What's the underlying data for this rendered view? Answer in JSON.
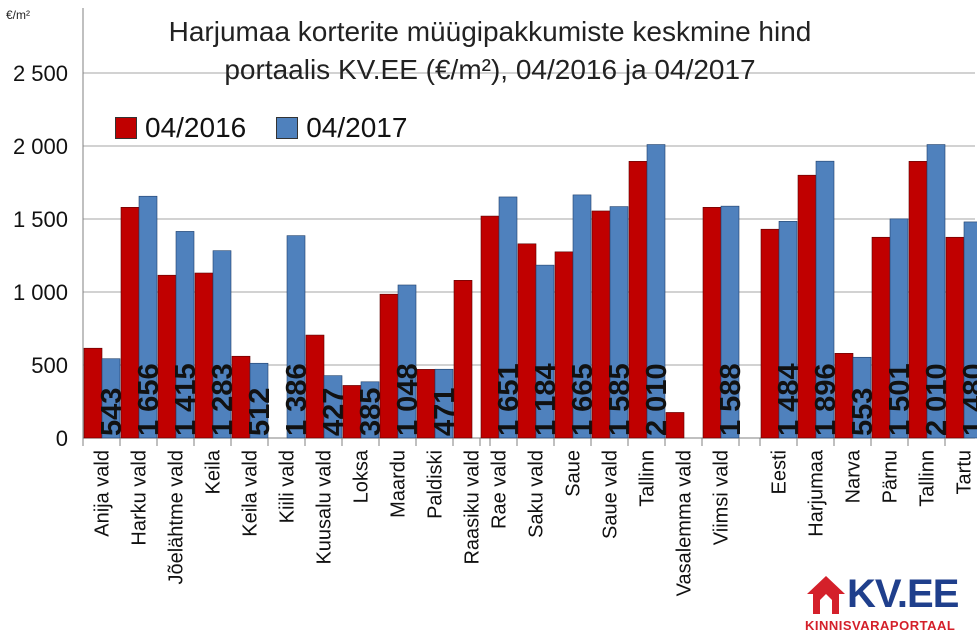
{
  "chart_data": {
    "type": "bar",
    "title_line1": "Harjumaa korterite müügipakkumiste keskmine hind",
    "title_line2": "portaalis KV.EE (€/m²), 04/2016 ja 04/2017",
    "unit_label": "€/m²",
    "ylim": [
      0,
      2500
    ],
    "yticks": [
      0,
      500,
      1000,
      1500,
      2000,
      2500
    ],
    "ytick_labels": [
      "0",
      "500",
      "1 000",
      "1 500",
      "2 000",
      "2 500"
    ],
    "grid": true,
    "legend_position": "top-left",
    "series": [
      {
        "name": "04/2016",
        "color": "#c00000"
      },
      {
        "name": "04/2017",
        "color": "#4f81bd"
      }
    ],
    "groups": [
      {
        "categories": [
          "Anija vald",
          "Harku vald",
          "Jõelähtme vald",
          "Keila",
          "Keila vald",
          "Kiili vald",
          "Kuusalu vald",
          "Loksa",
          "Maardu",
          "Paldiski",
          "Raasiku vald"
        ],
        "v2016": [
          615,
          1580,
          1115,
          1130,
          560,
          null,
          705,
          360,
          985,
          470,
          1080
        ],
        "v2017": [
          543,
          1656,
          1415,
          1283,
          512,
          1386,
          427,
          385,
          1048,
          471,
          null
        ],
        "labels2017": [
          "543",
          "1 656",
          "1 415",
          "1 283",
          "512",
          "1 386",
          "427",
          "385",
          "1 048",
          "471",
          ""
        ]
      },
      {
        "categories": [
          "Rae vald",
          "Saku vald",
          "Saue",
          "Saue vald",
          "Tallinn",
          "Vasalemma vald",
          "Viimsi vald"
        ],
        "v2016": [
          1520,
          1330,
          1275,
          1555,
          1895,
          175,
          1580
        ],
        "v2017": [
          1651,
          1184,
          1665,
          1585,
          2010,
          null,
          1588
        ],
        "labels2017": [
          "1 651",
          "1 184",
          "1 665",
          "1 585",
          "2 010",
          "",
          "1 588"
        ]
      },
      {
        "categories": [
          "Eesti",
          "Harjumaa",
          "Narva",
          "Pärnu",
          "Tallinn",
          "Tartu"
        ],
        "v2016": [
          1430,
          1800,
          580,
          1375,
          1895,
          1375
        ],
        "v2017": [
          1484,
          1896,
          553,
          1501,
          2010,
          1480
        ],
        "labels2017": [
          "1 484",
          "1 896",
          "553",
          "1 501",
          "2 010",
          "1 480"
        ]
      }
    ]
  },
  "logo": {
    "main": "KV.EE",
    "sub": "KINNISVARAPORTAAL"
  }
}
